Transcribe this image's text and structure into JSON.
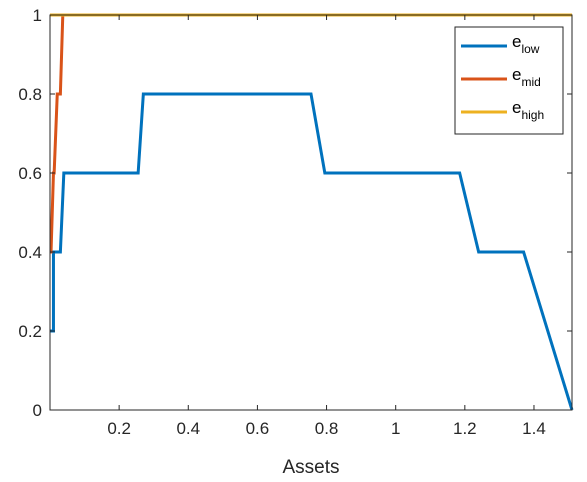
{
  "chart_data": {
    "type": "line",
    "title": "",
    "xlabel": "Assets",
    "ylabel": "",
    "xlim": [
      0,
      1.51
    ],
    "ylim": [
      0,
      1
    ],
    "xticks": [
      0.2,
      0.4,
      0.6,
      0.8,
      1,
      1.2,
      1.4
    ],
    "xtick_labels": [
      "0.2",
      "0.4",
      "0.6",
      "0.8",
      "1",
      "1.2",
      "1.4"
    ],
    "yticks": [
      0,
      0.2,
      0.4,
      0.6,
      0.8,
      1
    ],
    "ytick_labels": [
      "0",
      "0.2",
      "0.4",
      "0.6",
      "0.8",
      "1"
    ],
    "grid": false,
    "legend_position": "top-right",
    "series": [
      {
        "name_base": "e",
        "name_sub": "low",
        "color": "#0072BD",
        "x": [
          0,
          0.01,
          0.01,
          0.03,
          0.04,
          0.255,
          0.27,
          0.755,
          0.795,
          1.185,
          1.24,
          1.37,
          1.51
        ],
        "y": [
          0.2,
          0.2,
          0.4,
          0.4,
          0.6,
          0.6,
          0.8,
          0.8,
          0.6,
          0.6,
          0.4,
          0.4,
          0
        ]
      },
      {
        "name_base": "e",
        "name_sub": "mid",
        "color": "#D95319",
        "x": [
          0,
          0.003,
          0.01,
          0.012,
          0.021,
          0.023,
          0.03,
          0.037,
          0.042
        ],
        "y": [
          0.4,
          0.4,
          0.6,
          0.6,
          0.8,
          0.8,
          0.8,
          1,
          1
        ]
      },
      {
        "name_base": "e",
        "name_sub": "high",
        "color": "#EDB120",
        "x": [
          0,
          1.51
        ],
        "y": [
          1,
          1
        ]
      }
    ]
  }
}
